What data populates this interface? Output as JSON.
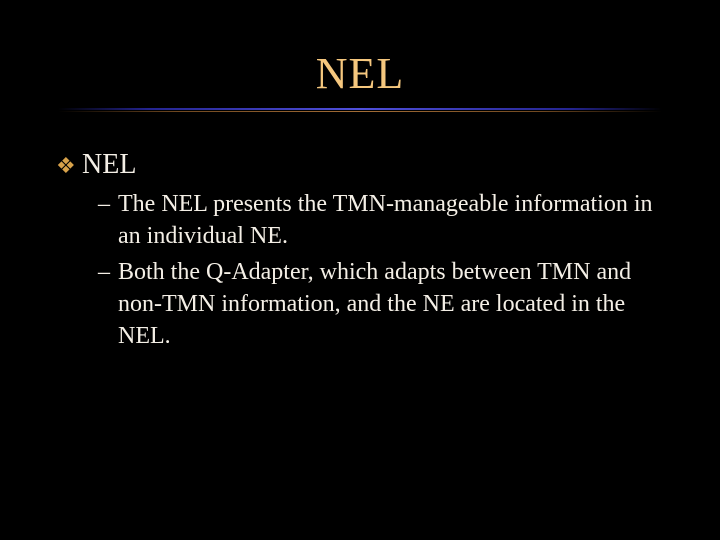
{
  "colors": {
    "background": "#000000",
    "title": "#f5c77e",
    "body_text": "#f4efe6",
    "bullet": "#d8a24a"
  },
  "title": "NEL",
  "content": {
    "heading": "NEL",
    "sub": [
      "The NEL presents the TMN-manageable information in an individual NE.",
      "Both the Q-Adapter, which adapts between TMN and non-TMN information, and the NE are located in the NEL."
    ]
  }
}
